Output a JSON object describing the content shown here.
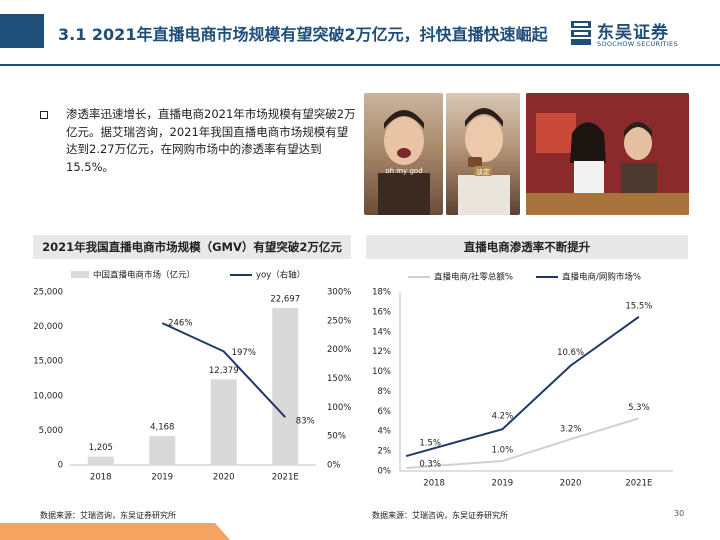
{
  "header": {
    "title": "3.1 2021年直播电商市场规模有望突破2万亿元，抖快直播快速崛起",
    "logo_cn": "东吴证券",
    "logo_en": "SOOCHOW SECURITIES"
  },
  "bullet": {
    "text": "渗透率迅速增长，直播电商2021年市场规模有望突破2万亿元。据艾瑞咨询，2021年我国直播电商市场规模有望达到2.27万亿元，在网购市场中的渗透率有望达到15.5%。"
  },
  "photos": {
    "photo1_caption": "oh my god",
    "photo2_caption": "淡定"
  },
  "left_section": {
    "heading": "2021年我国直播电商市场规模（GMV）有望突破2万亿元",
    "source": "数据来源：艾瑞咨询，东吴证券研究所"
  },
  "right_section": {
    "heading": "直播电商渗透率不断提升",
    "source": "数据来源：艾瑞咨询，东吴证券研究所"
  },
  "page_number": "30",
  "colors": {
    "brand": "#1f4e79",
    "bar": "#d9d9d9",
    "line_dark": "#1f3864",
    "line_light": "#d0d0d0",
    "footer_orange": "#f4a460"
  },
  "chart_data": [
    {
      "type": "bar",
      "categories": [
        "2018",
        "2019",
        "2020",
        "2021E"
      ],
      "series": [
        {
          "name": "中国直播电商市场（亿元）",
          "values": [
            1205,
            4168,
            12379,
            22697
          ],
          "labels": [
            "1,205",
            "4,168",
            "12,379",
            "22,697"
          ],
          "axis": "left"
        },
        {
          "name": "yoy（右轴）",
          "type": "line",
          "values": [
            null,
            246,
            197,
            83
          ],
          "labels": [
            "",
            "246%",
            "197%",
            "83%"
          ],
          "axis": "right"
        }
      ],
      "ylim": [
        0,
        25000
      ],
      "yticks": [
        "0",
        "5,000",
        "10,000",
        "15,000",
        "20,000",
        "25,000"
      ],
      "y2lim": [
        0,
        300
      ],
      "y2ticks": [
        "0%",
        "50%",
        "100%",
        "150%",
        "200%",
        "250%",
        "300%"
      ],
      "legend": "top"
    },
    {
      "type": "line",
      "categories": [
        "2018",
        "2019",
        "2020",
        "2021E"
      ],
      "series": [
        {
          "name": "直播电商/社零总额%",
          "values": [
            0.3,
            1.0,
            3.2,
            5.3
          ],
          "labels": [
            "0.3%",
            "1.0%",
            "3.2%",
            "5.3%"
          ]
        },
        {
          "name": "直播电商/网购市场%",
          "values": [
            1.5,
            4.2,
            10.6,
            15.5
          ],
          "labels": [
            "1.5%",
            "4.2%",
            "10.6%",
            "15.5%"
          ]
        }
      ],
      "ylim": [
        0,
        18
      ],
      "yticks": [
        "0%",
        "2%",
        "4%",
        "6%",
        "8%",
        "10%",
        "12%",
        "14%",
        "16%",
        "18%"
      ],
      "legend": "top"
    }
  ]
}
